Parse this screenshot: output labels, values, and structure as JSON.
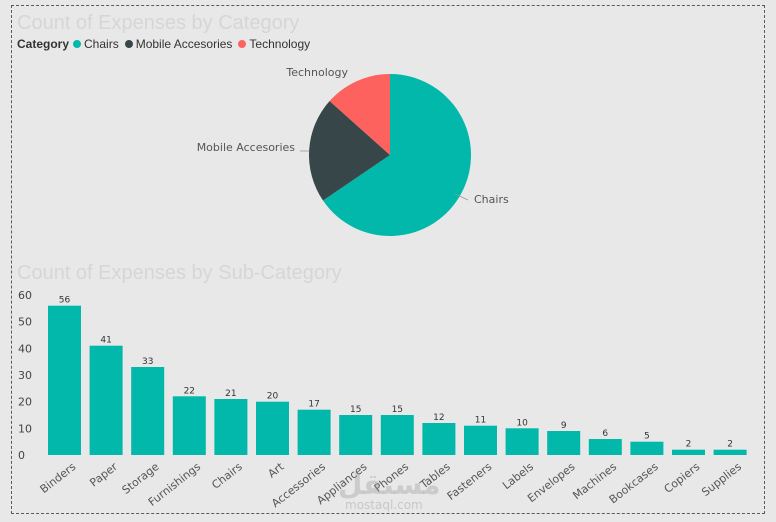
{
  "chart_data": [
    {
      "type": "pie",
      "title": "Count of Expenses by Category",
      "legend": {
        "title": "Category",
        "placement": "top-left",
        "items": [
          "Chairs",
          "Mobile Accesories",
          "Technology"
        ]
      },
      "categories": [
        "Chairs",
        "Mobile Accesories",
        "Technology"
      ],
      "values": [
        0.655,
        0.211,
        0.134
      ],
      "colors": [
        "#01B8AA",
        "#374649",
        "#FD625E"
      ]
    },
    {
      "type": "bar",
      "title": "Count of Expenses by Sub-Category",
      "categories": [
        "Binders",
        "Paper",
        "Storage",
        "Furnishings",
        "Chairs",
        "Art",
        "Accessories",
        "Appliances",
        "Phones",
        "Tables",
        "Fasteners",
        "Labels",
        "Envelopes",
        "Machines",
        "Bookcases",
        "Copiers",
        "Supplies"
      ],
      "values": [
        56,
        41,
        33,
        22,
        21,
        20,
        17,
        15,
        15,
        12,
        11,
        10,
        9,
        6,
        5,
        2,
        2
      ],
      "ylim": [
        0,
        60
      ],
      "yticks": [
        0,
        10,
        20,
        30,
        40,
        50,
        60
      ],
      "grid": false,
      "color": "#01B8AA"
    }
  ],
  "watermark": {
    "text": "مستقل",
    "sub": "mostaql.com"
  }
}
